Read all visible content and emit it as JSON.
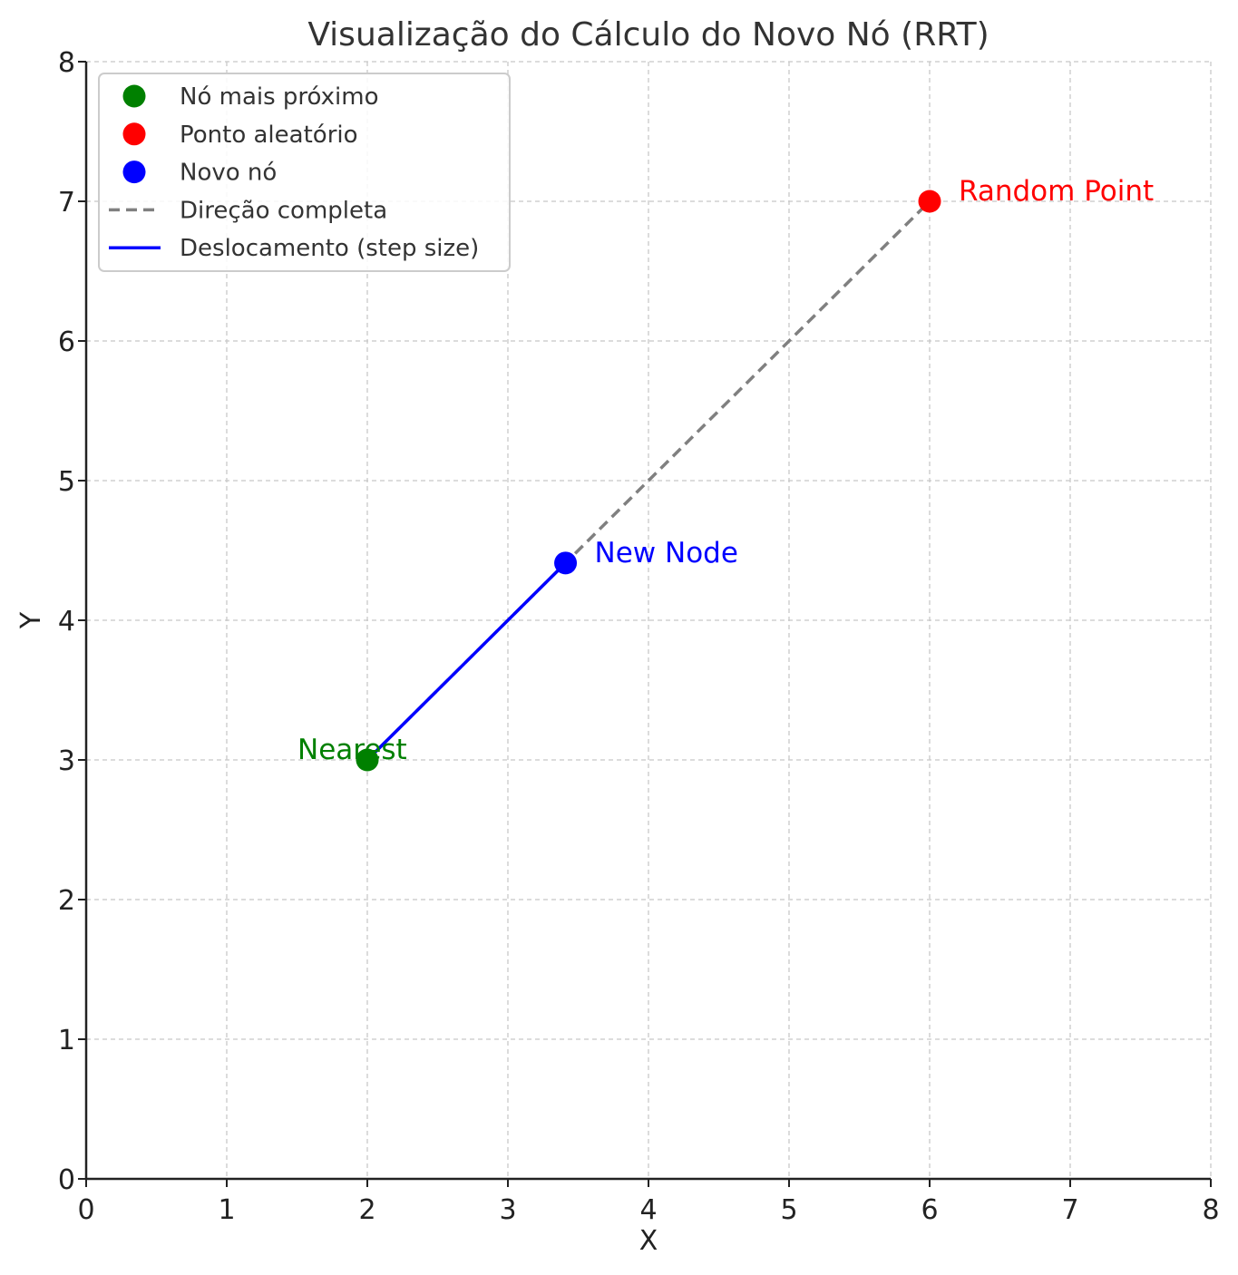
{
  "chart_data": {
    "type": "line",
    "title": "Visualização do Cálculo do Novo Nó (RRT)",
    "xlabel": "X",
    "ylabel": "Y",
    "xlim": [
      0,
      8
    ],
    "ylim": [
      0,
      8
    ],
    "xticks": [
      "0",
      "1",
      "2",
      "3",
      "4",
      "5",
      "6",
      "7",
      "8"
    ],
    "yticks": [
      "0",
      "1",
      "2",
      "3",
      "4",
      "5",
      "6",
      "7",
      "8"
    ],
    "grid": true,
    "legend_position": "top-left",
    "points": [
      {
        "name": "Nó mais próximo",
        "x": 2,
        "y": 3,
        "color": "#008000",
        "label": "Nearest"
      },
      {
        "name": "Ponto aleatório",
        "x": 6,
        "y": 7,
        "color": "#ff0000",
        "label": "Random Point"
      },
      {
        "name": "Novo nó",
        "x": 3.41,
        "y": 4.41,
        "color": "#0000ff",
        "label": "New Node"
      }
    ],
    "lines": [
      {
        "name": "Direção completa",
        "x": [
          2,
          6
        ],
        "y": [
          3,
          7
        ],
        "color": "#808080",
        "style": "dashed"
      },
      {
        "name": "Deslocamento (step size)",
        "x": [
          2,
          3.41
        ],
        "y": [
          3,
          4.41
        ],
        "color": "#0000ff",
        "style": "solid"
      }
    ]
  }
}
